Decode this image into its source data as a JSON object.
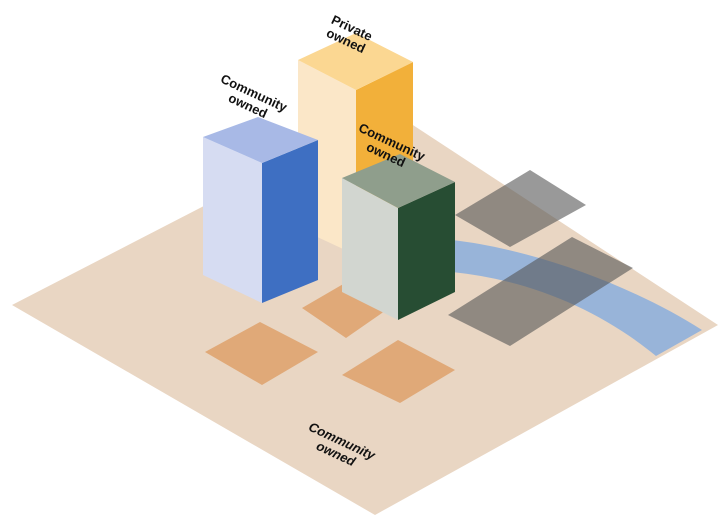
{
  "blocks": [
    {
      "label": [
        "Private",
        "owned"
      ]
    },
    {
      "label": [
        "Community",
        "owned"
      ]
    },
    {
      "label": [
        "Community",
        "owned"
      ]
    }
  ],
  "ground": {
    "label": [
      "Community",
      "owned"
    ]
  }
}
